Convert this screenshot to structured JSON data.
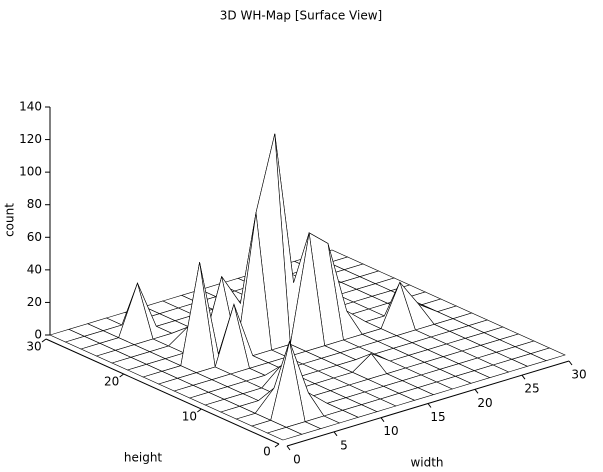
{
  "chart_data": {
    "type": "surface",
    "title": "3D WH-Map [Surface View]",
    "xlabel": "width",
    "ylabel": "height",
    "zlabel": "count",
    "x": [
      0,
      2,
      4,
      6,
      8,
      10,
      12,
      14,
      16,
      18,
      20,
      22,
      24,
      26,
      28,
      30
    ],
    "y": [
      0,
      2,
      4,
      6,
      8,
      10,
      12,
      14,
      16,
      18,
      20,
      22,
      24,
      26,
      28,
      30
    ],
    "z": [
      [
        0,
        0,
        0,
        0,
        0,
        0,
        0,
        0,
        0,
        0,
        0,
        0,
        0,
        0,
        0,
        0
      ],
      [
        0,
        0,
        0,
        0,
        0,
        0,
        0,
        0,
        0,
        0,
        0,
        0,
        0,
        0,
        0,
        0
      ],
      [
        0,
        0,
        45,
        10,
        0,
        0,
        0,
        0,
        0,
        0,
        0,
        0,
        0,
        0,
        0,
        0
      ],
      [
        0,
        0,
        12,
        0,
        0,
        0,
        0,
        0,
        0,
        0,
        0,
        0,
        0,
        0,
        0,
        0
      ],
      [
        0,
        0,
        0,
        0,
        0,
        0,
        0,
        0,
        8,
        0,
        0,
        0,
        0,
        0,
        0,
        0
      ],
      [
        0,
        0,
        0,
        0,
        10,
        0,
        0,
        0,
        0,
        0,
        0,
        0,
        0,
        0,
        0,
        0
      ],
      [
        0,
        0,
        0,
        0,
        0,
        0,
        0,
        0,
        0,
        0,
        0,
        0,
        0,
        0,
        0,
        0
      ],
      [
        0,
        0,
        0,
        0,
        0,
        0,
        0,
        0,
        0,
        0,
        0,
        0,
        25,
        8,
        0,
        0
      ],
      [
        0,
        0,
        0,
        0,
        35,
        0,
        0,
        0,
        65,
        55,
        10,
        0,
        0,
        0,
        0,
        0
      ],
      [
        0,
        0,
        0,
        60,
        0,
        0,
        80,
        125,
        30,
        0,
        0,
        0,
        0,
        0,
        0,
        0
      ],
      [
        0,
        0,
        0,
        0,
        0,
        40,
        20,
        75,
        0,
        0,
        0,
        0,
        0,
        0,
        0,
        0
      ],
      [
        0,
        0,
        0,
        0,
        8,
        0,
        0,
        0,
        0,
        0,
        15,
        0,
        0,
        0,
        0,
        0
      ],
      [
        0,
        0,
        0,
        0,
        0,
        0,
        0,
        0,
        0,
        0,
        0,
        0,
        0,
        0,
        0,
        0
      ],
      [
        0,
        0,
        0,
        30,
        0,
        0,
        0,
        0,
        0,
        0,
        0,
        0,
        0,
        0,
        0,
        0
      ],
      [
        0,
        0,
        0,
        0,
        0,
        0,
        0,
        0,
        0,
        0,
        0,
        0,
        0,
        0,
        0,
        0
      ],
      [
        0,
        0,
        0,
        0,
        0,
        0,
        0,
        0,
        0,
        0,
        0,
        0,
        0,
        0,
        0,
        0
      ]
    ],
    "xlim": [
      0,
      30
    ],
    "ylim": [
      0,
      30
    ],
    "zlim": [
      0,
      140
    ],
    "xticks": [
      0,
      5,
      10,
      15,
      20,
      25,
      30
    ],
    "yticks": [
      0,
      10,
      20,
      30
    ],
    "zticks": [
      0,
      20,
      40,
      60,
      80,
      100,
      120,
      140
    ]
  }
}
